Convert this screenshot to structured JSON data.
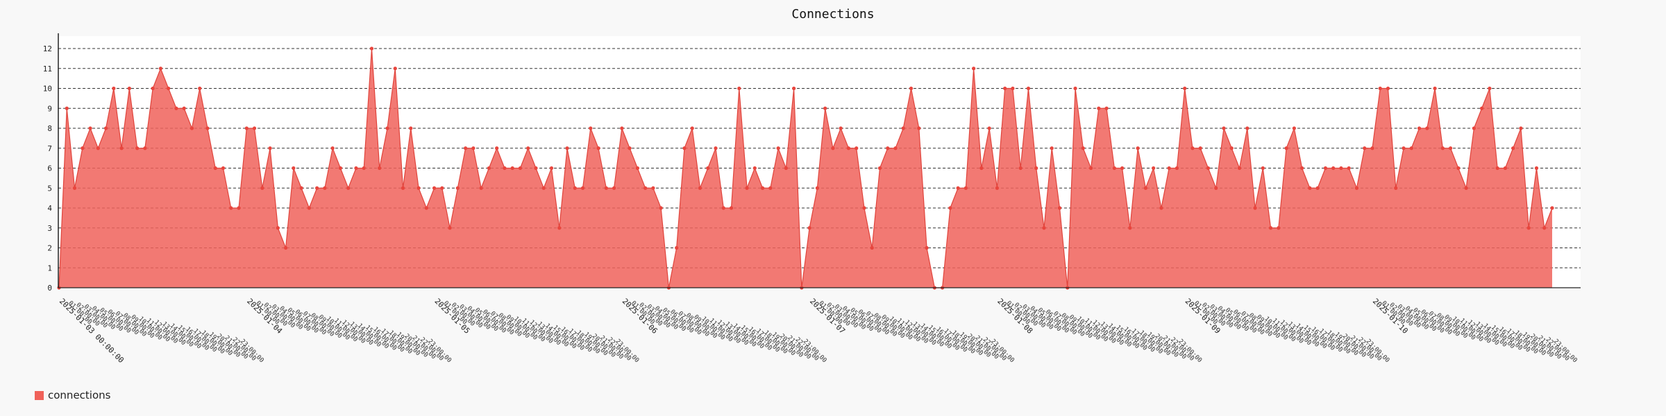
{
  "chart_data": {
    "type": "area",
    "title": "Connections",
    "xlabel": "",
    "ylabel": "",
    "ylim": [
      0,
      12
    ],
    "yticks": [
      0,
      1,
      2,
      3,
      4,
      5,
      6,
      7,
      8,
      9,
      10,
      11,
      12
    ],
    "grid": true,
    "legend_position": "bottom-left",
    "x_tick_labels": [
      "2025-01-03 00:00:00",
      "2025-01-04",
      "2025-01-05",
      "2025-01-06",
      "2025-01-07",
      "2025-01-08",
      "2025-01-09",
      "2025-01-10"
    ],
    "x_range": [
      "2025-01-03 00:00",
      "2025-01-11 03:00"
    ],
    "time_step_hours": 1,
    "series": [
      {
        "name": "connections",
        "color": "#f0625a",
        "values": [
          0,
          9,
          5,
          7,
          8,
          7,
          8,
          10,
          7,
          10,
          7,
          7,
          10,
          11,
          10,
          9,
          9,
          8,
          10,
          8,
          6,
          6,
          4,
          4,
          8,
          8,
          5,
          7,
          3,
          2,
          6,
          5,
          4,
          5,
          5,
          7,
          6,
          5,
          6,
          6,
          12,
          6,
          8,
          11,
          5,
          8,
          5,
          4,
          5,
          5,
          3,
          5,
          7,
          7,
          5,
          6,
          7,
          6,
          6,
          6,
          7,
          6,
          5,
          6,
          3,
          7,
          5,
          5,
          8,
          7,
          5,
          5,
          8,
          7,
          6,
          5,
          5,
          4,
          0,
          2,
          7,
          8,
          5,
          6,
          7,
          4,
          4,
          10,
          5,
          6,
          5,
          5,
          7,
          6,
          10,
          0,
          3,
          5,
          9,
          7,
          8,
          7,
          7,
          4,
          2,
          6,
          7,
          7,
          8,
          10,
          8,
          2,
          0,
          0,
          4,
          5,
          5,
          11,
          6,
          8,
          5,
          10,
          10,
          6,
          10,
          6,
          3,
          7,
          4,
          0,
          10,
          7,
          6,
          9,
          9,
          6,
          6,
          3,
          7,
          5,
          6,
          4,
          6,
          6,
          10,
          7,
          7,
          6,
          5,
          8,
          7,
          6,
          8,
          4,
          6,
          3,
          3,
          7,
          8,
          6,
          5,
          5,
          6,
          6,
          6,
          6,
          5,
          7,
          7,
          10,
          10,
          5,
          7,
          7,
          8,
          8,
          10,
          7,
          7,
          6,
          5,
          8,
          9,
          10,
          6,
          6,
          7,
          8,
          3,
          6,
          3,
          4
        ]
      }
    ]
  }
}
